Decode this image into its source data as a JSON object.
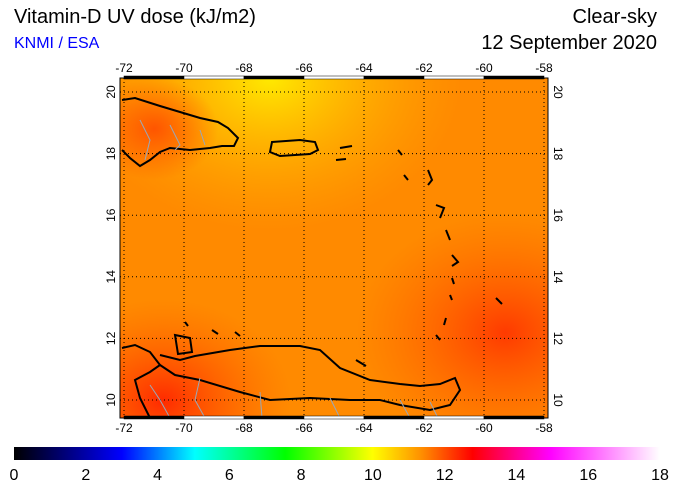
{
  "header": {
    "title": "Vitamin-D UV dose (kJ/m2)",
    "credit": "KNMI / ESA",
    "condition": "Clear-sky",
    "date": "12 September 2020"
  },
  "map": {
    "lon_ticks": [
      "-72",
      "-70",
      "-68",
      "-66",
      "-64",
      "-62",
      "-60",
      "-58"
    ],
    "lat_ticks": [
      "10",
      "12",
      "14",
      "16",
      "18",
      "20"
    ],
    "lon_range": [
      -72,
      -58
    ],
    "lat_range": [
      9.5,
      20.5
    ]
  },
  "colorbar": {
    "ticks": [
      "0",
      "2",
      "4",
      "6",
      "8",
      "10",
      "12",
      "14",
      "16",
      "18"
    ],
    "colors": [
      "#000000",
      "#0000ff",
      "#00ffff",
      "#00ff00",
      "#ffff00",
      "#ff8000",
      "#ff0000",
      "#ff00ff",
      "#ffffff"
    ]
  }
}
